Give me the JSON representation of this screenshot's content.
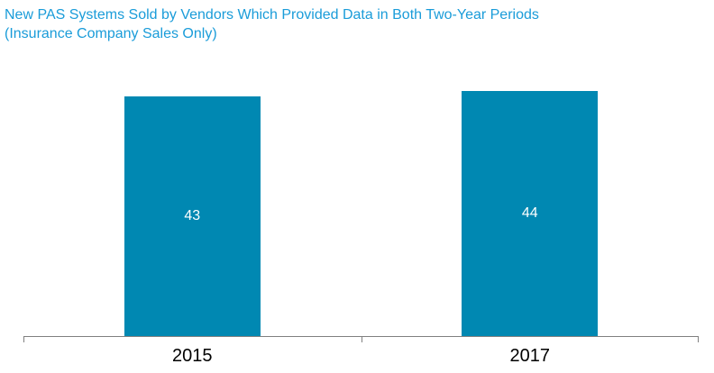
{
  "title": {
    "line1": "New PAS Systems Sold by Vendors Which Provided Data in Both Two-Year Periods",
    "line2": "(Insurance Company Sales Only)"
  },
  "colors": {
    "bar": "#0088B2",
    "title": "#1A9CD9",
    "axis": "#808080",
    "value_label": "#FFFFFF",
    "category_label": "#000000",
    "background": "#FFFFFF"
  },
  "chart_data": {
    "type": "bar",
    "categories": [
      "2015",
      "2017"
    ],
    "values": [
      43,
      44
    ],
    "title": "New PAS Systems Sold by Vendors Which Provided Data in Both Two-Year Periods (Insurance Company Sales Only)",
    "xlabel": "",
    "ylabel": "",
    "ylim": [
      0,
      44
    ],
    "grid": false,
    "legend": false,
    "value_label_position": "inside-center",
    "value_labels": [
      "43",
      "44"
    ]
  }
}
